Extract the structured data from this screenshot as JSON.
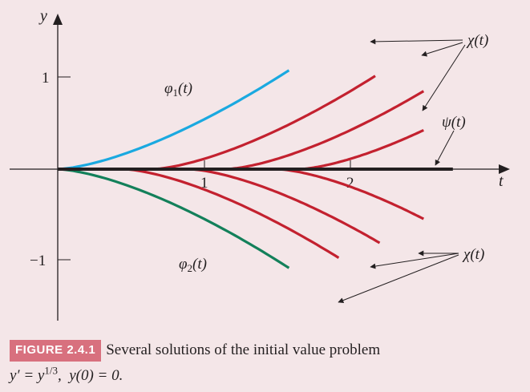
{
  "chart_data": {
    "type": "line",
    "title": "",
    "xlabel": "t",
    "ylabel": "y",
    "xlim": [
      -0.4,
      3.1
    ],
    "ylim": [
      -1.55,
      1.6
    ],
    "x_ticks": [
      {
        "value": 1,
        "label": "1"
      },
      {
        "value": 2,
        "label": "2"
      }
    ],
    "y_ticks": [
      {
        "value": 1,
        "label": "1"
      },
      {
        "value": -1,
        "label": "−1"
      }
    ],
    "series": [
      {
        "name": "φ1(t)",
        "color": "#1aa9e0",
        "kind": "phi",
        "sign": 1,
        "t0": 0,
        "t_end": 1.58
      },
      {
        "name": "φ2(t)",
        "color": "#13805a",
        "kind": "phi",
        "sign": -1,
        "t0": 0,
        "t_end": 1.58
      },
      {
        "name": "χ(t)",
        "color": "#c3212f",
        "kind": "chi",
        "sign": 1,
        "t0": 0.65,
        "t_end": 2.17
      },
      {
        "name": "χ(t)",
        "color": "#c3212f",
        "kind": "chi",
        "sign": 1,
        "t0": 1.15,
        "t_end": 2.5
      },
      {
        "name": "χ(t)",
        "color": "#c3212f",
        "kind": "chi",
        "sign": 1,
        "t0": 1.65,
        "t_end": 2.5
      },
      {
        "name": "χ(t)",
        "color": "#c3212f",
        "kind": "chi",
        "sign": -1,
        "t0": 0.9,
        "t_end": 2.2
      },
      {
        "name": "χ(t)",
        "color": "#c3212f",
        "kind": "chi",
        "sign": -1,
        "t0": 0.45,
        "t_end": 1.92
      },
      {
        "name": "χ(t)",
        "color": "#c3212f",
        "kind": "chi",
        "sign": -1,
        "t0": 1.5,
        "t_end": 2.5
      },
      {
        "name": "ψ(t)",
        "color": "#231f20",
        "kind": "psi",
        "sign": 0,
        "t0": 0,
        "t_end": 2.7
      }
    ],
    "labels": {
      "phi1": "φ1(t)",
      "phi2": "φ2(t)",
      "chi_top": "χ(t)",
      "chi_bottom": "χ(t)",
      "psi": "ψ(t)"
    }
  },
  "caption": {
    "figure_label": "FIGURE 2.4.1",
    "text_line1": "Several solutions of the initial value problem",
    "text_line2": "y′ = y1/3,  y(0) = 0."
  }
}
